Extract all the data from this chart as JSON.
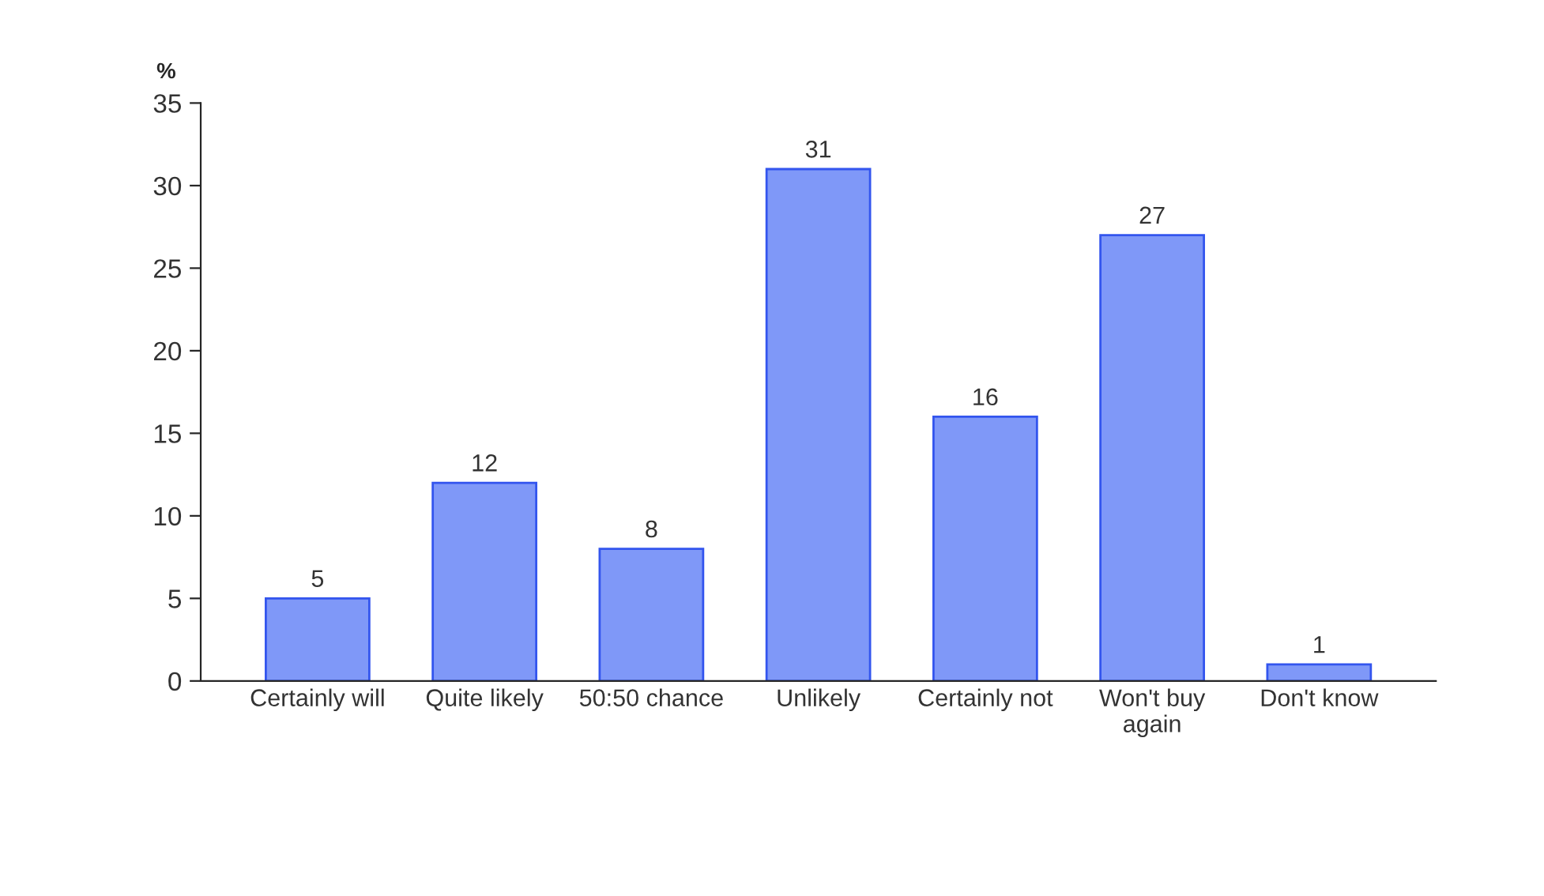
{
  "chart_data": {
    "type": "bar",
    "ylabel": "%",
    "categories": [
      "Certainly will",
      "Quite likely",
      "50:50 chance",
      "Unlikely",
      "Certainly not",
      "Won't buy again",
      "Don't know"
    ],
    "values": [
      5,
      12,
      8,
      31,
      16,
      27,
      1
    ],
    "color": "#7f98f8",
    "ylim": [
      0,
      35
    ],
    "yticks": [
      0,
      5,
      10,
      15,
      20,
      25,
      30,
      35
    ],
    "data_labels": true,
    "grid": false
  }
}
